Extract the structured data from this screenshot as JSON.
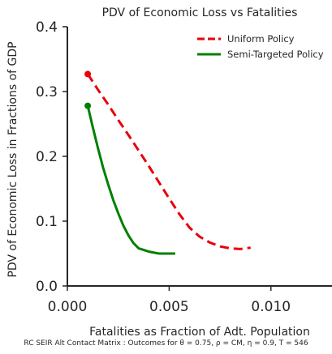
{
  "chart_data": {
    "type": "line",
    "title": "PDV of Economic Loss vs  Fatalities",
    "xlabel": "Fatalities as Fraction of Adt. Population",
    "ylabel": "PDV of Economic Loss in Fractions of GDP",
    "xlim": [
      0,
      0.013
    ],
    "ylim": [
      0,
      0.4
    ],
    "x_ticks": [
      0.0,
      0.005,
      0.01
    ],
    "x_tick_labels": [
      "0.000",
      "0.005",
      "0.010"
    ],
    "y_ticks": [
      0.0,
      0.1,
      0.2,
      0.3,
      0.4
    ],
    "y_tick_labels": [
      "0.0",
      "0.1",
      "0.2",
      "0.3",
      "0.4"
    ],
    "grid": false,
    "legend_position": "top-right",
    "series": [
      {
        "name": "Uniform Policy",
        "color": "#e8000b",
        "style": "dashed",
        "marker_at_start": true,
        "x": [
          0.001,
          0.0015,
          0.002,
          0.0025,
          0.003,
          0.0035,
          0.004,
          0.0045,
          0.005,
          0.0055,
          0.006,
          0.0065,
          0.007,
          0.0075,
          0.008,
          0.0085,
          0.009
        ],
        "y": [
          0.327,
          0.303,
          0.28,
          0.256,
          0.233,
          0.209,
          0.185,
          0.16,
          0.135,
          0.111,
          0.09,
          0.076,
          0.067,
          0.061,
          0.058,
          0.057,
          0.059
        ]
      },
      {
        "name": "Semi-Targeted Policy",
        "color": "#008000",
        "style": "solid",
        "marker_at_start": true,
        "x": [
          0.001,
          0.00125,
          0.0015,
          0.00175,
          0.002,
          0.00225,
          0.0025,
          0.00275,
          0.003,
          0.00325,
          0.0035,
          0.004,
          0.0045,
          0.005,
          0.0053
        ],
        "y": [
          0.278,
          0.245,
          0.213,
          0.183,
          0.157,
          0.133,
          0.112,
          0.093,
          0.078,
          0.066,
          0.058,
          0.053,
          0.05,
          0.05,
          0.05
        ]
      }
    ]
  },
  "caption": "RC SEIR Alt Contact Matrix : Outcomes for θ = 0.75, ρ = CM, η = 0.9,  T = 546"
}
